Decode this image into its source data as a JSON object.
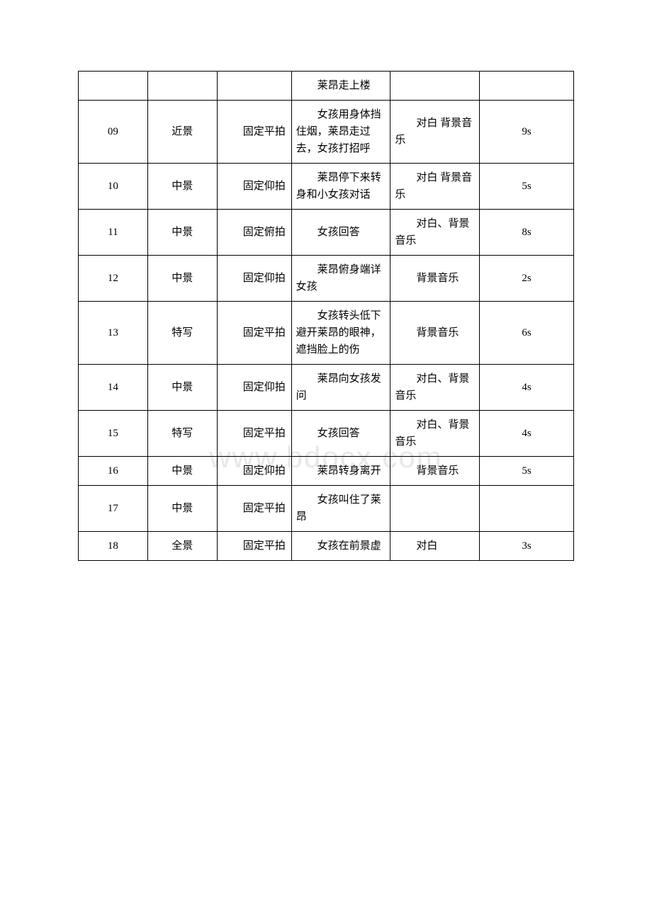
{
  "watermark": "www.bdocx.com",
  "table": {
    "column_widths_pct": [
      14,
      14,
      15,
      20,
      18,
      19
    ],
    "border_color": "#000000",
    "background_color": "#ffffff",
    "font_size": 15,
    "text_color": "#000000",
    "rows": [
      {
        "num": "",
        "shot": "",
        "tech": "",
        "desc": "莱昂走上楼",
        "sound": "",
        "dur": ""
      },
      {
        "num": "09",
        "shot": "近景",
        "tech": "固定平拍",
        "desc": "女孩用身体挡住烟，莱昂走过去，女孩打招呼",
        "sound": "对白    背景音乐",
        "dur": "9s"
      },
      {
        "num": "10",
        "shot": "中景",
        "tech": "固定仰拍",
        "desc": "莱昂停下来转身和小女孩对话",
        "sound": "对白    背景音乐",
        "dur": "5s"
      },
      {
        "num": "11",
        "shot": "中景",
        "tech": "固定俯拍",
        "desc": "女孩回答",
        "sound": "对白、背景音乐",
        "dur": "8s"
      },
      {
        "num": "12",
        "shot": "中景",
        "tech": "固定仰拍",
        "desc": "莱昂俯身端详女孩",
        "sound": "背景音乐",
        "dur": "2s"
      },
      {
        "num": "13",
        "shot": "特写",
        "tech": "固定平拍",
        "desc": "女孩转头低下避开莱昂的眼神，遮挡脸上的伤",
        "sound": "背景音乐",
        "dur": "6s"
      },
      {
        "num": "14",
        "shot": "中景",
        "tech": "固定仰拍",
        "desc": "莱昂向女孩发问",
        "sound": "对白、背景音乐",
        "dur": "4s"
      },
      {
        "num": "15",
        "shot": "特写",
        "tech": "固定平拍",
        "desc": "女孩回答",
        "sound": "对白、背景音乐",
        "dur": "4s"
      },
      {
        "num": "16",
        "shot": "中景",
        "tech": "固定仰拍",
        "desc": "莱昂转身离开",
        "sound": "背景音乐",
        "dur": "5s"
      },
      {
        "num": "17",
        "shot": "中景",
        "tech": "固定平拍",
        "desc": "女孩叫住了莱昂",
        "sound": "",
        "dur": ""
      },
      {
        "num": "18",
        "shot": "全景",
        "tech": "固定平拍",
        "desc": "女孩在前景虚",
        "sound": "对白",
        "dur": "3s"
      }
    ]
  }
}
